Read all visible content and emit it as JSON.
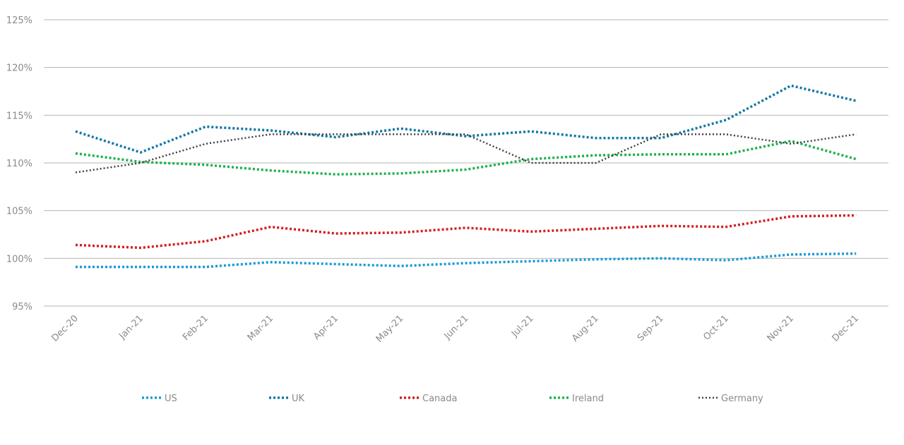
{
  "chart_data": {
    "type": "line",
    "title": "",
    "xlabel": "",
    "ylabel": "",
    "categories": [
      "Dec-20",
      "Jan-21",
      "Feb-21",
      "Mar-21",
      "Apr-21",
      "May-21",
      "Jun-21",
      "Jul-21",
      "Aug-21",
      "Sep-21",
      "Oct-21",
      "Nov-21",
      "Dec-21"
    ],
    "ylim": [
      95,
      125
    ],
    "yticks": [
      95,
      100,
      105,
      110,
      115,
      120,
      125
    ],
    "ytick_labels": [
      "95%",
      "100%",
      "105%",
      "110%",
      "115%",
      "120%",
      "125%"
    ],
    "grid": true,
    "legend_position": "bottom",
    "line_style": "dotted",
    "series": [
      {
        "name": "US",
        "color": "#1a9ad6",
        "values": [
          99.1,
          99.1,
          99.1,
          99.6,
          99.4,
          99.2,
          99.5,
          99.7,
          99.9,
          100.0,
          99.8,
          100.4,
          100.5
        ]
      },
      {
        "name": "UK",
        "color": "#1279a3",
        "values": [
          113.3,
          111.1,
          113.8,
          113.4,
          112.7,
          113.6,
          112.8,
          113.3,
          112.6,
          112.6,
          114.5,
          118.1,
          116.5
        ]
      },
      {
        "name": "Canada",
        "color": "#d21f1f",
        "values": [
          101.4,
          101.1,
          101.8,
          103.3,
          102.6,
          102.7,
          103.2,
          102.8,
          103.1,
          103.4,
          103.3,
          104.4,
          104.5
        ]
      },
      {
        "name": "Ireland",
        "color": "#1fb050",
        "values": [
          111.0,
          110.1,
          109.8,
          109.2,
          108.8,
          108.9,
          109.3,
          110.4,
          110.8,
          110.9,
          110.9,
          112.3,
          110.4
        ]
      },
      {
        "name": "Germany",
        "color": "#404040",
        "values": [
          109.0,
          110.0,
          112.0,
          113.0,
          113.0,
          113.0,
          113.0,
          110.0,
          110.0,
          113.0,
          113.0,
          112.0,
          113.0
        ]
      }
    ]
  }
}
